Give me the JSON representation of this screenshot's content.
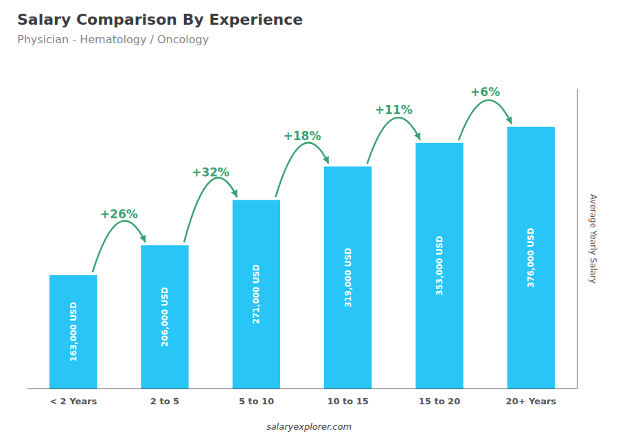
{
  "chart_data": {
    "type": "bar",
    "title": "Salary Comparison By Experience",
    "subtitle": "Physician - Hematology / Oncology",
    "categories": [
      "< 2 Years",
      "2 to 5",
      "5 to 10",
      "10 to 15",
      "15 to 20",
      "20+ Years"
    ],
    "values": [
      163000,
      206000,
      271000,
      319000,
      353000,
      376000
    ],
    "value_labels": [
      "163,000 USD",
      "206,000 USD",
      "271,000 USD",
      "319,000 USD",
      "353,000 USD",
      "376,000 USD"
    ],
    "data_labels": true,
    "color": "#29c5f6",
    "y_label": "Average Yearly Salary",
    "ylim": [
      0,
      430000
    ],
    "tick_labels": "x",
    "grid": false,
    "annotations": [
      "+26%",
      "+32%",
      "+18%",
      "+11%",
      "+6%"
    ],
    "footer": "salaryexplorer.com"
  }
}
